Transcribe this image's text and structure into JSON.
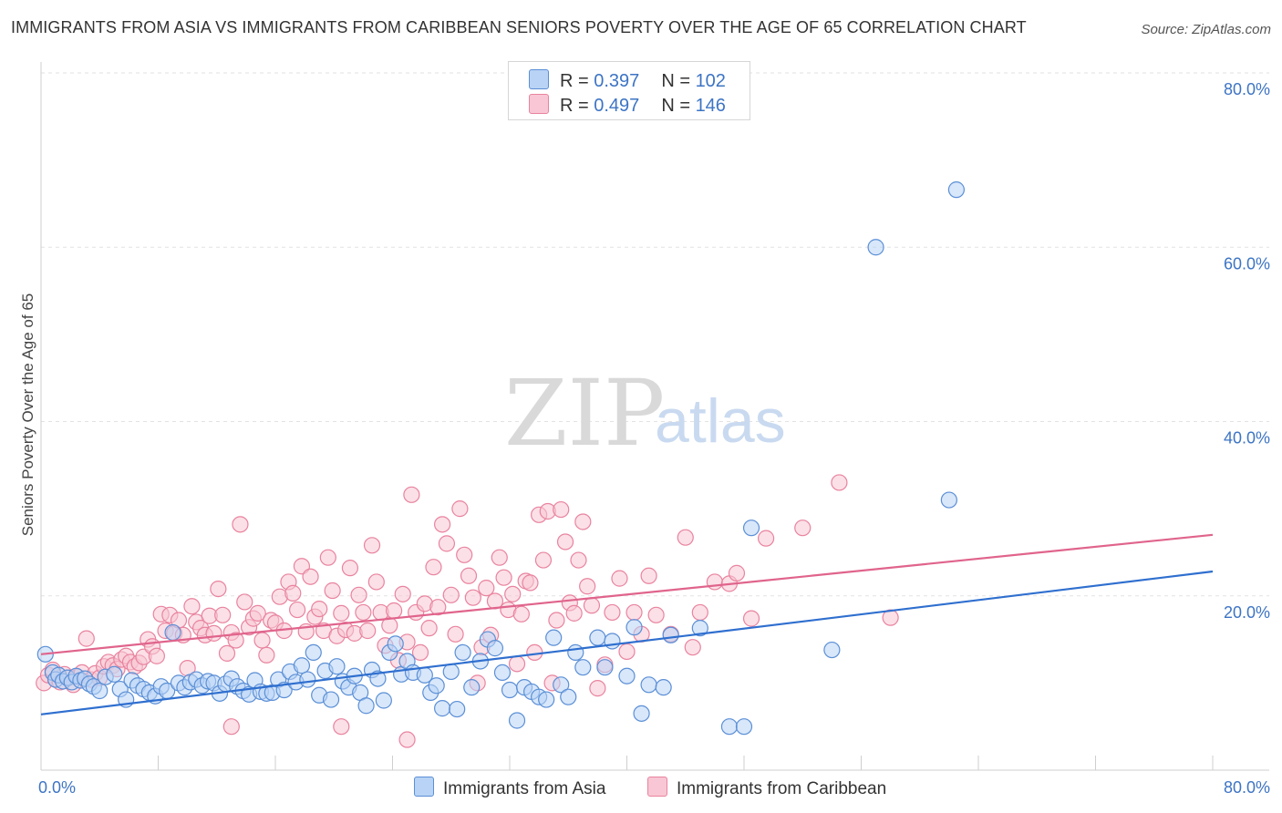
{
  "title": "IMMIGRANTS FROM ASIA VS IMMIGRANTS FROM CARIBBEAN SENIORS POVERTY OVER THE AGE OF 65 CORRELATION CHART",
  "source": "Source: ZipAtlas.com",
  "watermark": {
    "zip": "ZIP",
    "atlas": "atlas"
  },
  "legend": {
    "rows": [
      {
        "r_label": "R = ",
        "r_value": "0.397",
        "n_label": "N = ",
        "n_value": "102"
      },
      {
        "r_label": "R = ",
        "r_value": "0.497",
        "n_label": "N = ",
        "n_value": "146"
      }
    ]
  },
  "colors": {
    "asia_fill": "#b8d3f5",
    "asia_stroke": "#5b8fd6",
    "asia_line": "#2f6fcf",
    "carib_fill": "#f8c6d4",
    "carib_stroke": "#e9839f",
    "carib_line": "#e0648c",
    "tick_text": "#3d74c4",
    "grid": "#e2e2e2"
  },
  "chart_data": {
    "type": "scatter",
    "title": "IMMIGRANTS FROM ASIA VS IMMIGRANTS FROM CARIBBEAN SENIORS POVERTY OVER THE AGE OF 65 CORRELATION CHART",
    "xlabel": "",
    "ylabel": "Seniors Poverty Over the Age of 65",
    "xlim": [
      0,
      80
    ],
    "ylim": [
      0,
      80
    ],
    "x_tick_labels": [
      "0.0%",
      "80.0%"
    ],
    "y_tick_labels": [
      "20.0%",
      "40.0%",
      "60.0%",
      "80.0%"
    ],
    "y_ticks": [
      20,
      40,
      60,
      80
    ],
    "grid": "horizontal dashed",
    "legend_position": "top-center",
    "series": [
      {
        "name": "Immigrants from Asia",
        "r": 0.397,
        "n": 102,
        "trend": {
          "x": [
            0,
            80
          ],
          "y": [
            6.4,
            22.8
          ]
        },
        "points": [
          [
            0.3,
            13.3
          ],
          [
            0.8,
            11.2
          ],
          [
            1.0,
            10.4
          ],
          [
            1.2,
            10.9
          ],
          [
            1.5,
            10.2
          ],
          [
            1.8,
            10.6
          ],
          [
            2.1,
            10.1
          ],
          [
            2.4,
            10.8
          ],
          [
            2.7,
            10.3
          ],
          [
            3.0,
            10.5
          ],
          [
            3.3,
            9.9
          ],
          [
            3.6,
            9.6
          ],
          [
            4.0,
            9.1
          ],
          [
            4.4,
            10.7
          ],
          [
            5.0,
            11.0
          ],
          [
            5.4,
            9.3
          ],
          [
            5.8,
            8.1
          ],
          [
            6.2,
            10.3
          ],
          [
            6.6,
            9.7
          ],
          [
            7.0,
            9.3
          ],
          [
            7.4,
            8.9
          ],
          [
            7.8,
            8.5
          ],
          [
            8.2,
            9.6
          ],
          [
            8.6,
            9.1
          ],
          [
            9.0,
            15.8
          ],
          [
            9.4,
            10.0
          ],
          [
            9.8,
            9.5
          ],
          [
            10.2,
            10.1
          ],
          [
            10.6,
            10.4
          ],
          [
            11.0,
            9.7
          ],
          [
            11.4,
            10.2
          ],
          [
            11.8,
            10.0
          ],
          [
            12.2,
            8.8
          ],
          [
            12.6,
            9.9
          ],
          [
            13.0,
            10.5
          ],
          [
            13.4,
            9.6
          ],
          [
            13.8,
            9.1
          ],
          [
            14.2,
            8.7
          ],
          [
            14.6,
            10.3
          ],
          [
            15.0,
            9.0
          ],
          [
            15.4,
            8.8
          ],
          [
            15.8,
            8.9
          ],
          [
            16.2,
            10.4
          ],
          [
            16.6,
            9.2
          ],
          [
            17.0,
            11.3
          ],
          [
            17.4,
            10.1
          ],
          [
            17.8,
            12.0
          ],
          [
            18.2,
            10.4
          ],
          [
            18.6,
            13.5
          ],
          [
            19.0,
            8.6
          ],
          [
            19.4,
            11.4
          ],
          [
            19.8,
            8.1
          ],
          [
            20.2,
            11.9
          ],
          [
            20.6,
            10.2
          ],
          [
            21.0,
            9.5
          ],
          [
            21.4,
            10.8
          ],
          [
            21.8,
            8.9
          ],
          [
            22.2,
            7.4
          ],
          [
            22.6,
            11.5
          ],
          [
            23.0,
            10.5
          ],
          [
            23.4,
            8.0
          ],
          [
            23.8,
            13.5
          ],
          [
            24.2,
            14.5
          ],
          [
            24.6,
            11.0
          ],
          [
            25.0,
            12.5
          ],
          [
            25.4,
            11.2
          ],
          [
            26.2,
            10.9
          ],
          [
            26.6,
            8.9
          ],
          [
            27.0,
            9.7
          ],
          [
            27.4,
            7.1
          ],
          [
            28.0,
            11.3
          ],
          [
            28.4,
            7.0
          ],
          [
            28.8,
            13.5
          ],
          [
            29.4,
            9.5
          ],
          [
            30.0,
            12.5
          ],
          [
            30.5,
            15.0
          ],
          [
            31.0,
            14.0
          ],
          [
            31.5,
            11.2
          ],
          [
            32.0,
            9.2
          ],
          [
            32.5,
            5.7
          ],
          [
            33.0,
            9.5
          ],
          [
            33.5,
            9.0
          ],
          [
            34.0,
            8.4
          ],
          [
            34.5,
            8.1
          ],
          [
            35.0,
            15.2
          ],
          [
            35.5,
            9.8
          ],
          [
            36.0,
            8.4
          ],
          [
            36.5,
            13.5
          ],
          [
            37.0,
            11.8
          ],
          [
            38.0,
            15.2
          ],
          [
            38.5,
            11.8
          ],
          [
            39.0,
            14.8
          ],
          [
            40.0,
            10.8
          ],
          [
            40.5,
            16.4
          ],
          [
            41.5,
            9.8
          ],
          [
            41.0,
            6.5
          ],
          [
            42.5,
            9.5
          ],
          [
            43.0,
            15.5
          ],
          [
            45.0,
            16.3
          ],
          [
            47.0,
            5.0
          ],
          [
            48.0,
            5.0
          ],
          [
            48.5,
            27.8
          ],
          [
            57.0,
            60.0
          ],
          [
            62.0,
            31.0
          ],
          [
            62.5,
            66.6
          ],
          [
            54.0,
            13.8
          ]
        ]
      },
      {
        "name": "Immigrants from Caribbean",
        "r": 0.497,
        "n": 146,
        "trend": {
          "x": [
            0,
            80
          ],
          "y": [
            13.3,
            27.0
          ]
        },
        "points": [
          [
            0.2,
            10.0
          ],
          [
            0.5,
            10.9
          ],
          [
            0.8,
            11.5
          ],
          [
            1.0,
            10.4
          ],
          [
            1.3,
            10.1
          ],
          [
            1.6,
            11.0
          ],
          [
            1.9,
            10.6
          ],
          [
            2.2,
            9.8
          ],
          [
            2.5,
            10.7
          ],
          [
            2.8,
            11.2
          ],
          [
            3.1,
            15.1
          ],
          [
            3.4,
            10.4
          ],
          [
            3.7,
            11.1
          ],
          [
            4.0,
            10.6
          ],
          [
            4.3,
            11.9
          ],
          [
            4.6,
            12.4
          ],
          [
            4.9,
            12.0
          ],
          [
            5.2,
            11.6
          ],
          [
            5.5,
            12.7
          ],
          [
            5.8,
            13.1
          ],
          [
            6.1,
            12.4
          ],
          [
            6.4,
            11.9
          ],
          [
            6.7,
            12.3
          ],
          [
            7.0,
            13.0
          ],
          [
            7.3,
            15.0
          ],
          [
            7.6,
            14.2
          ],
          [
            7.9,
            13.1
          ],
          [
            8.2,
            17.9
          ],
          [
            8.5,
            16.0
          ],
          [
            8.8,
            17.8
          ],
          [
            9.1,
            15.7
          ],
          [
            9.4,
            17.2
          ],
          [
            9.7,
            15.5
          ],
          [
            10.0,
            11.7
          ],
          [
            10.3,
            18.8
          ],
          [
            10.6,
            17.0
          ],
          [
            10.9,
            16.3
          ],
          [
            11.2,
            15.5
          ],
          [
            11.5,
            17.7
          ],
          [
            11.8,
            15.7
          ],
          [
            12.1,
            20.8
          ],
          [
            12.4,
            17.8
          ],
          [
            12.7,
            13.4
          ],
          [
            13.0,
            15.8
          ],
          [
            13.3,
            14.9
          ],
          [
            13.6,
            28.2
          ],
          [
            13.9,
            19.3
          ],
          [
            14.2,
            16.4
          ],
          [
            14.5,
            17.4
          ],
          [
            14.8,
            18.0
          ],
          [
            15.1,
            14.9
          ],
          [
            15.4,
            13.2
          ],
          [
            15.7,
            17.2
          ],
          [
            16.0,
            16.9
          ],
          [
            16.3,
            19.9
          ],
          [
            16.6,
            16.0
          ],
          [
            16.9,
            21.6
          ],
          [
            17.2,
            20.3
          ],
          [
            17.5,
            18.4
          ],
          [
            17.8,
            23.4
          ],
          [
            18.1,
            15.9
          ],
          [
            18.4,
            22.2
          ],
          [
            18.7,
            17.6
          ],
          [
            19.0,
            18.5
          ],
          [
            19.3,
            16.0
          ],
          [
            19.6,
            24.4
          ],
          [
            19.9,
            20.6
          ],
          [
            20.2,
            15.4
          ],
          [
            20.5,
            18.0
          ],
          [
            20.8,
            16.1
          ],
          [
            21.1,
            23.2
          ],
          [
            21.4,
            15.7
          ],
          [
            21.7,
            20.1
          ],
          [
            22.0,
            18.1
          ],
          [
            22.3,
            16.0
          ],
          [
            22.6,
            25.8
          ],
          [
            22.9,
            21.6
          ],
          [
            23.2,
            18.1
          ],
          [
            23.5,
            14.3
          ],
          [
            23.8,
            16.6
          ],
          [
            24.1,
            18.3
          ],
          [
            24.4,
            12.6
          ],
          [
            24.7,
            20.2
          ],
          [
            25.0,
            14.7
          ],
          [
            25.3,
            31.6
          ],
          [
            25.6,
            18.1
          ],
          [
            25.9,
            13.5
          ],
          [
            26.2,
            19.1
          ],
          [
            26.5,
            16.3
          ],
          [
            26.8,
            23.3
          ],
          [
            27.1,
            18.7
          ],
          [
            27.4,
            28.2
          ],
          [
            27.7,
            26.0
          ],
          [
            28.0,
            20.1
          ],
          [
            28.3,
            15.6
          ],
          [
            28.6,
            30.0
          ],
          [
            28.9,
            24.7
          ],
          [
            29.2,
            22.3
          ],
          [
            29.5,
            19.8
          ],
          [
            29.8,
            10.0
          ],
          [
            30.1,
            14.1
          ],
          [
            30.4,
            20.9
          ],
          [
            30.7,
            15.5
          ],
          [
            31.0,
            19.4
          ],
          [
            31.3,
            24.4
          ],
          [
            31.6,
            22.1
          ],
          [
            31.9,
            18.4
          ],
          [
            32.2,
            20.2
          ],
          [
            32.5,
            12.2
          ],
          [
            32.8,
            17.9
          ],
          [
            33.1,
            21.7
          ],
          [
            33.4,
            21.5
          ],
          [
            33.7,
            13.5
          ],
          [
            34.0,
            29.3
          ],
          [
            34.3,
            24.1
          ],
          [
            34.6,
            29.7
          ],
          [
            34.9,
            10.0
          ],
          [
            35.2,
            17.2
          ],
          [
            35.5,
            29.9
          ],
          [
            35.8,
            26.2
          ],
          [
            36.1,
            19.2
          ],
          [
            36.4,
            18.0
          ],
          [
            36.7,
            24.1
          ],
          [
            37.0,
            28.5
          ],
          [
            37.3,
            21.1
          ],
          [
            37.6,
            18.9
          ],
          [
            38.0,
            9.4
          ],
          [
            38.5,
            12.1
          ],
          [
            39.0,
            18.1
          ],
          [
            39.5,
            22.0
          ],
          [
            40.0,
            13.6
          ],
          [
            40.5,
            18.1
          ],
          [
            41.0,
            15.6
          ],
          [
            41.5,
            22.3
          ],
          [
            42.0,
            17.8
          ],
          [
            43.0,
            15.6
          ],
          [
            44.0,
            26.7
          ],
          [
            44.5,
            14.1
          ],
          [
            45.0,
            18.1
          ],
          [
            46.0,
            21.6
          ],
          [
            47.0,
            21.4
          ],
          [
            47.5,
            22.6
          ],
          [
            48.5,
            17.4
          ],
          [
            49.5,
            26.6
          ],
          [
            52.0,
            27.8
          ],
          [
            54.5,
            33.0
          ],
          [
            20.5,
            5.0
          ],
          [
            25.0,
            3.5
          ],
          [
            13.0,
            5.0
          ],
          [
            58.0,
            17.5
          ]
        ]
      }
    ]
  },
  "bottom_legend": {
    "asia": "Immigrants from Asia",
    "carib": "Immigrants from Caribbean"
  }
}
